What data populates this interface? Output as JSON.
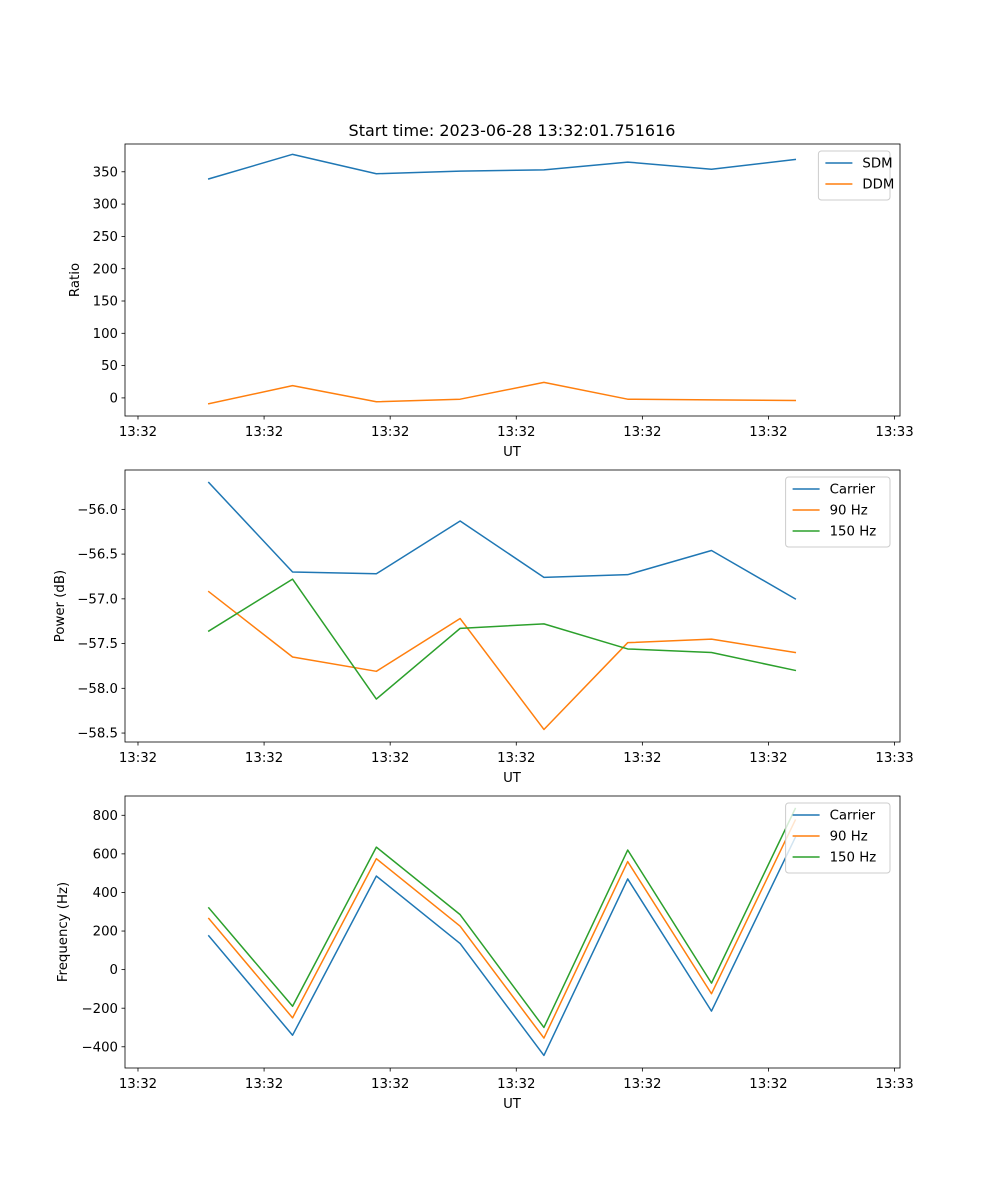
{
  "chart_data": [
    {
      "type": "line",
      "title": "Start time: 2023-06-28 13:32:01.751616",
      "xlabel": "UT",
      "ylabel": "Ratio",
      "x_tick_labels": [
        "13:32",
        "13:32",
        "13:32",
        "13:32",
        "13:32",
        "13:32",
        "13:33"
      ],
      "x": [
        1,
        2,
        3,
        4,
        5,
        6,
        7,
        8
      ],
      "xlim": [
        0,
        9.25
      ],
      "y_ticks": [
        0,
        50,
        100,
        150,
        200,
        250,
        300,
        350
      ],
      "ylim": [
        -28,
        393
      ],
      "grid": false,
      "legend": "top-right",
      "series": [
        {
          "name": "SDM",
          "color": "#1f77b4",
          "values": [
            339,
            377,
            347,
            351,
            353,
            365,
            354,
            369
          ]
        },
        {
          "name": "DDM",
          "color": "#ff7f0e",
          "values": [
            -9,
            19,
            -6,
            -2,
            24,
            -2,
            -3,
            -4
          ]
        }
      ]
    },
    {
      "type": "line",
      "title": "",
      "xlabel": "UT",
      "ylabel": "Power (dB)",
      "x_tick_labels": [
        "13:32",
        "13:32",
        "13:32",
        "13:32",
        "13:32",
        "13:32",
        "13:33"
      ],
      "x": [
        1,
        2,
        3,
        4,
        5,
        6,
        7,
        8
      ],
      "xlim": [
        0,
        9.25
      ],
      "y_ticks": [
        -58.5,
        -58.0,
        -57.5,
        -57.0,
        -56.5,
        -56.0
      ],
      "y_tick_labels": [
        "−58.5",
        "−58.0",
        "−57.5",
        "−57.0",
        "−56.5",
        "−56.0"
      ],
      "ylim": [
        -58.6,
        -55.56
      ],
      "grid": false,
      "legend": "top-right",
      "series": [
        {
          "name": "Carrier",
          "color": "#1f77b4",
          "values": [
            -55.7,
            -56.7,
            -56.72,
            -56.13,
            -56.76,
            -56.73,
            -56.46,
            -57.0
          ]
        },
        {
          "name": "90 Hz",
          "color": "#ff7f0e",
          "values": [
            -56.92,
            -57.65,
            -57.81,
            -57.22,
            -58.46,
            -57.49,
            -57.45,
            -57.6
          ]
        },
        {
          "name": "150 Hz",
          "color": "#2ca02c",
          "values": [
            -57.36,
            -56.78,
            -58.12,
            -57.33,
            -57.28,
            -57.56,
            -57.6,
            -57.8
          ]
        }
      ]
    },
    {
      "type": "line",
      "title": "",
      "xlabel": "UT",
      "ylabel": "Frequency (Hz)",
      "x_tick_labels": [
        "13:32",
        "13:32",
        "13:32",
        "13:32",
        "13:32",
        "13:32",
        "13:33"
      ],
      "x": [
        1,
        2,
        3,
        4,
        5,
        6,
        7,
        8
      ],
      "xlim": [
        0,
        9.25
      ],
      "y_ticks": [
        -400,
        -200,
        0,
        200,
        400,
        600,
        800
      ],
      "y_tick_labels": [
        "−400",
        "−200",
        "0",
        "200",
        "400",
        "600",
        "800"
      ],
      "ylim": [
        -510,
        900
      ],
      "grid": false,
      "legend": "top-right",
      "series": [
        {
          "name": "Carrier",
          "color": "#1f77b4",
          "values": [
            175,
            -340,
            485,
            135,
            -445,
            470,
            -215,
            685
          ]
        },
        {
          "name": "90 Hz",
          "color": "#ff7f0e",
          "values": [
            265,
            -250,
            575,
            225,
            -355,
            560,
            -125,
            775
          ]
        },
        {
          "name": "150 Hz",
          "color": "#2ca02c",
          "values": [
            320,
            -190,
            635,
            285,
            -300,
            620,
            -70,
            835
          ]
        }
      ]
    }
  ]
}
